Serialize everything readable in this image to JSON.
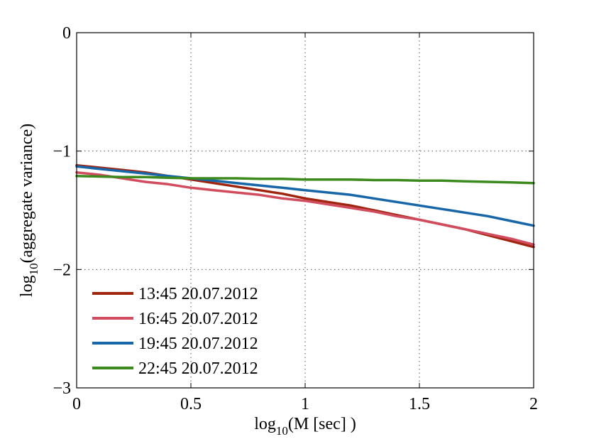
{
  "chart_data": {
    "type": "line",
    "title": "",
    "xlabel": {
      "prefix": "log",
      "sub": "10",
      "suffix": "(M [sec] )"
    },
    "ylabel": {
      "prefix": "log",
      "sub": "10",
      "suffix": "(aggregate variance)"
    },
    "xlim": [
      0,
      2
    ],
    "ylim": [
      -3,
      0
    ],
    "xticks": [
      0,
      0.5,
      1,
      1.5,
      2
    ],
    "xtick_labels": [
      "0",
      "0.5",
      "1",
      "1.5",
      "2"
    ],
    "yticks": [
      -3,
      -2,
      -1,
      0
    ],
    "ytick_labels": [
      "−3",
      "−2",
      "−1",
      "0"
    ],
    "grid": true,
    "legend_position": "bottom-left",
    "series": [
      {
        "name": "13:45 20.07.2012",
        "color": "#a0250f",
        "x": [
          0,
          0.1,
          0.2,
          0.3,
          0.4,
          0.5,
          0.6,
          0.7,
          0.8,
          0.9,
          1.0,
          1.1,
          1.2,
          1.3,
          1.4,
          1.5,
          1.6,
          1.7,
          1.8,
          1.9,
          2.0
        ],
        "y": [
          -1.12,
          -1.14,
          -1.16,
          -1.18,
          -1.21,
          -1.24,
          -1.27,
          -1.3,
          -1.33,
          -1.36,
          -1.4,
          -1.43,
          -1.46,
          -1.5,
          -1.54,
          -1.58,
          -1.62,
          -1.66,
          -1.71,
          -1.76,
          -1.81
        ]
      },
      {
        "name": "16:45 20.07.2012",
        "color": "#d14c5e",
        "x": [
          0,
          0.1,
          0.2,
          0.3,
          0.4,
          0.5,
          0.6,
          0.7,
          0.8,
          0.9,
          1.0,
          1.1,
          1.2,
          1.3,
          1.4,
          1.5,
          1.6,
          1.7,
          1.8,
          1.9,
          2.0
        ],
        "y": [
          -1.18,
          -1.2,
          -1.23,
          -1.26,
          -1.28,
          -1.31,
          -1.33,
          -1.35,
          -1.37,
          -1.4,
          -1.42,
          -1.45,
          -1.48,
          -1.51,
          -1.55,
          -1.58,
          -1.62,
          -1.66,
          -1.7,
          -1.74,
          -1.79
        ]
      },
      {
        "name": "19:45 20.07.2012",
        "color": "#1766a8",
        "x": [
          0,
          0.1,
          0.2,
          0.3,
          0.4,
          0.5,
          0.6,
          0.7,
          0.8,
          0.9,
          1.0,
          1.1,
          1.2,
          1.3,
          1.4,
          1.5,
          1.6,
          1.7,
          1.8,
          1.9,
          2.0
        ],
        "y": [
          -1.13,
          -1.15,
          -1.17,
          -1.19,
          -1.21,
          -1.23,
          -1.25,
          -1.27,
          -1.29,
          -1.31,
          -1.33,
          -1.35,
          -1.37,
          -1.4,
          -1.43,
          -1.46,
          -1.49,
          -1.52,
          -1.55,
          -1.59,
          -1.63
        ]
      },
      {
        "name": "22:45 20.07.2012",
        "color": "#3c8a1e",
        "x": [
          0,
          0.1,
          0.2,
          0.3,
          0.4,
          0.5,
          0.6,
          0.7,
          0.8,
          0.9,
          1.0,
          1.1,
          1.2,
          1.3,
          1.4,
          1.5,
          1.6,
          1.7,
          1.8,
          1.9,
          2.0
        ],
        "y": [
          -1.21,
          -1.215,
          -1.22,
          -1.22,
          -1.225,
          -1.23,
          -1.23,
          -1.23,
          -1.235,
          -1.235,
          -1.24,
          -1.24,
          -1.24,
          -1.245,
          -1.245,
          -1.25,
          -1.25,
          -1.255,
          -1.26,
          -1.265,
          -1.27
        ]
      }
    ]
  }
}
